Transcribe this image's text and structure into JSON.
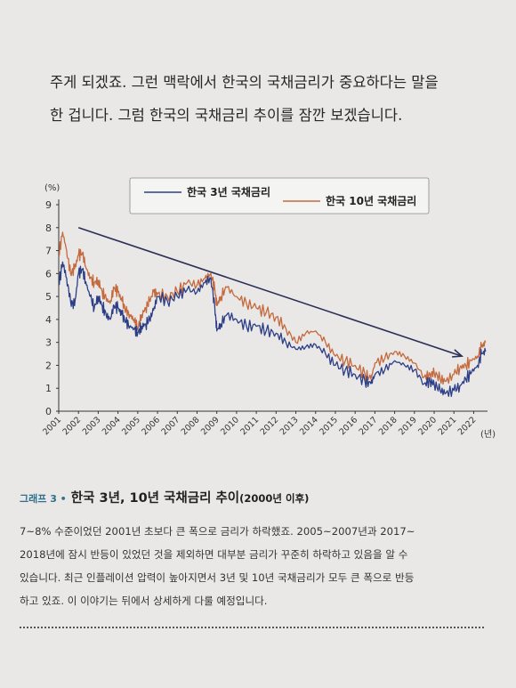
{
  "intro": {
    "line1": "주게 되겠죠. 그런 맥락에서 한국의 국채금리가 중요하다는 말을",
    "line2": "한 겁니다. 그럼 한국의 국채금리 추이를 잠깐 보겠습니다."
  },
  "caption": {
    "tag": "그래프 3 •",
    "title": "한국 3년, 10년 국채금리 추이",
    "subtitle": "(2000년 이후)"
  },
  "description": {
    "line1": "7~8% 수준이었던 2001년 초보다 큰 폭으로 금리가 하락했죠. 2005~2007년과 2017~",
    "line2": "2018년에 잠시 반등이 있었던 것을 제외하면 대부분 금리가 꾸준히 하락하고 있음을 알 수",
    "line3": "있습니다. 최근 인플레이션 압력이 높아지면서 3년 및 10년 국채금리가 모두 큰 폭으로 반등",
    "line4": "하고 있죠. 이 이야기는 뒤에서 상세하게 다룰 예정입니다."
  },
  "colors": {
    "series_3y": "#2c3e86",
    "series_10y": "#c46a3f",
    "trend_arrow": "#2b2f5a",
    "axis": "#333333"
  },
  "chart_data": {
    "type": "line",
    "title": "",
    "xlabel": "(년)",
    "ylabel": "(%)",
    "ylim": [
      0,
      9
    ],
    "xlim": [
      2001,
      2022.7
    ],
    "yticks": [
      "0",
      "1",
      "2",
      "3",
      "4",
      "5",
      "6",
      "7",
      "8",
      "9"
    ],
    "xticks": [
      "2001",
      "2002",
      "2003",
      "2004",
      "2005",
      "2006",
      "2007",
      "2008",
      "2009",
      "2010",
      "2011",
      "2012",
      "2013",
      "2014",
      "2015",
      "2016",
      "2017",
      "2018",
      "2019",
      "2020",
      "2021",
      "2022"
    ],
    "legend_position": "top-center",
    "grid": false,
    "trend_arrow": {
      "from": [
        2002.0,
        8.0
      ],
      "to": [
        2021.4,
        2.4
      ]
    },
    "series": [
      {
        "name": "한국 3년 국채금리",
        "x": [
          2001.0,
          2001.2,
          2001.4,
          2001.6,
          2001.8,
          2002.0,
          2002.2,
          2002.4,
          2002.6,
          2002.8,
          2003.0,
          2003.2,
          2003.4,
          2003.6,
          2003.8,
          2004.0,
          2004.2,
          2004.4,
          2004.6,
          2004.8,
          2005.0,
          2005.2,
          2005.4,
          2005.6,
          2005.8,
          2006.0,
          2006.5,
          2007.0,
          2007.5,
          2008.0,
          2008.4,
          2008.7,
          2008.9,
          2009.0,
          2009.2,
          2009.5,
          2010.0,
          2010.5,
          2011.0,
          2011.5,
          2012.0,
          2012.5,
          2013.0,
          2013.5,
          2014.0,
          2014.5,
          2015.0,
          2015.5,
          2016.0,
          2016.5,
          2016.8,
          2017.0,
          2017.5,
          2018.0,
          2018.5,
          2019.0,
          2019.5,
          2019.8,
          2020.0,
          2020.3,
          2020.6,
          2021.0,
          2021.3,
          2021.6,
          2021.9,
          2022.2,
          2022.4,
          2022.6
        ],
        "values": [
          5.5,
          6.5,
          5.8,
          4.8,
          4.6,
          6.0,
          6.2,
          5.5,
          5.0,
          4.5,
          5.0,
          4.6,
          4.2,
          4.0,
          4.6,
          4.5,
          4.2,
          3.9,
          3.7,
          3.6,
          3.4,
          3.7,
          3.8,
          4.0,
          4.4,
          5.0,
          4.8,
          5.0,
          5.3,
          5.2,
          5.6,
          5.8,
          4.5,
          3.5,
          3.8,
          4.2,
          4.0,
          3.7,
          3.7,
          3.5,
          3.4,
          3.0,
          2.7,
          2.8,
          2.9,
          2.5,
          2.0,
          1.8,
          1.6,
          1.3,
          1.2,
          1.6,
          1.8,
          2.2,
          2.0,
          1.8,
          1.2,
          1.3,
          1.2,
          0.9,
          0.8,
          0.9,
          1.1,
          1.4,
          1.7,
          2.0,
          2.5,
          2.6
        ]
      },
      {
        "name": "한국 10년 국채금리",
        "x": [
          2001.0,
          2001.2,
          2001.4,
          2001.6,
          2001.8,
          2002.0,
          2002.2,
          2002.4,
          2002.6,
          2002.8,
          2003.0,
          2003.2,
          2003.4,
          2003.6,
          2003.8,
          2004.0,
          2004.2,
          2004.4,
          2004.6,
          2004.8,
          2005.0,
          2005.2,
          2005.4,
          2005.6,
          2005.8,
          2006.0,
          2006.5,
          2007.0,
          2007.5,
          2008.0,
          2008.4,
          2008.7,
          2008.9,
          2009.0,
          2009.2,
          2009.5,
          2010.0,
          2010.5,
          2011.0,
          2011.5,
          2012.0,
          2012.5,
          2013.0,
          2013.5,
          2014.0,
          2014.5,
          2015.0,
          2015.5,
          2016.0,
          2016.5,
          2016.8,
          2017.0,
          2017.5,
          2018.0,
          2018.5,
          2019.0,
          2019.5,
          2019.8,
          2020.0,
          2020.3,
          2020.6,
          2021.0,
          2021.3,
          2021.6,
          2021.9,
          2022.2,
          2022.4,
          2022.6
        ],
        "values": [
          6.8,
          7.8,
          7.0,
          6.0,
          6.2,
          6.8,
          6.9,
          6.2,
          5.8,
          5.6,
          5.7,
          5.2,
          4.9,
          4.7,
          5.4,
          5.2,
          4.8,
          4.4,
          4.2,
          4.0,
          3.6,
          4.2,
          4.5,
          4.8,
          5.2,
          5.1,
          5.0,
          5.2,
          5.6,
          5.5,
          5.8,
          6.0,
          5.3,
          4.6,
          5.0,
          5.4,
          5.0,
          4.7,
          4.5,
          4.3,
          4.1,
          3.6,
          3.0,
          3.4,
          3.5,
          3.0,
          2.4,
          2.2,
          2.0,
          1.6,
          1.4,
          2.1,
          2.3,
          2.6,
          2.4,
          2.1,
          1.5,
          1.6,
          1.7,
          1.4,
          1.3,
          1.6,
          1.9,
          2.0,
          2.2,
          2.4,
          2.8,
          3.0
        ]
      }
    ]
  }
}
